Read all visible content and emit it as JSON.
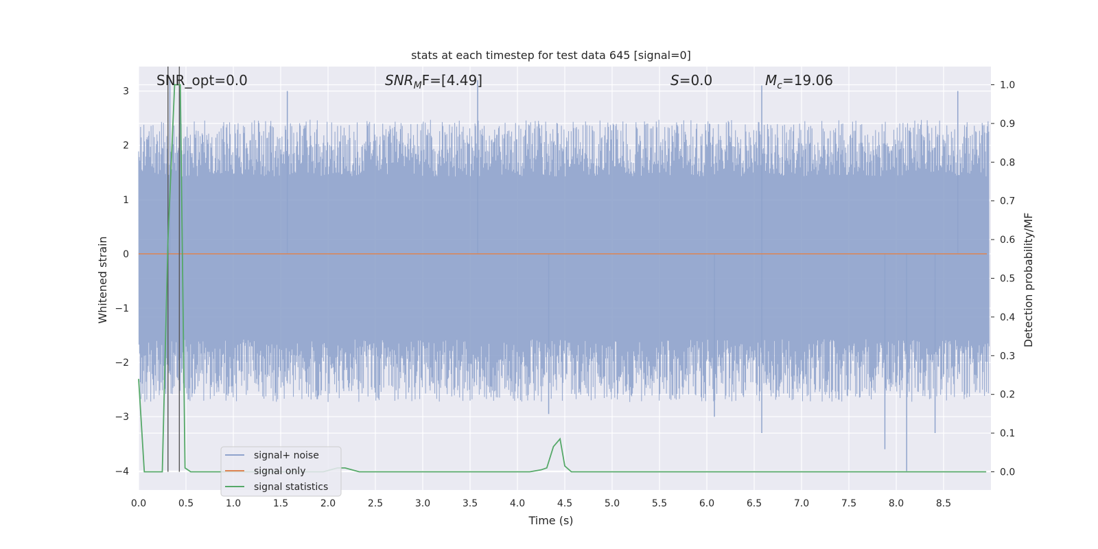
{
  "chart_data": {
    "type": "line",
    "title": "stats at each timestep for test data 645 [signal=0]",
    "xlabel": "Time (s)",
    "ylabel": "Whitened strain",
    "y2label": "Detection probability/MF",
    "xlim": [
      0.0,
      9.0
    ],
    "ylim": [
      -4.35,
      3.45
    ],
    "y2lim": [
      -0.047,
      1.047
    ],
    "x_ticks": [
      "0.0",
      "0.5",
      "1.0",
      "1.5",
      "2.0",
      "2.5",
      "3.0",
      "3.5",
      "4.0",
      "4.5",
      "5.0",
      "5.5",
      "6.0",
      "6.5",
      "7.0",
      "7.5",
      "8.0",
      "8.5"
    ],
    "y_ticks": [
      "−4",
      "−3",
      "−2",
      "−1",
      "0",
      "1",
      "2",
      "3"
    ],
    "y2_ticks": [
      "0.0",
      "0.1",
      "0.2",
      "0.3",
      "0.4",
      "0.5",
      "0.6",
      "0.7",
      "0.8",
      "0.9",
      "1.0"
    ],
    "grid": true,
    "legend_position": "lower-left",
    "annotations": {
      "snr_opt": "SNR_opt=0.0",
      "snr_mf_main": "SNR",
      "snr_mf_sub": "M",
      "snr_mf_rest": "F=[4.49]",
      "s_main": "S",
      "s_rest": "=0.0",
      "mc_main": "M",
      "mc_sub": "c",
      "mc_rest": "=19.06"
    },
    "series": [
      {
        "name": "signal+ noise",
        "color": "#8fa3cc",
        "description_kind": "noise",
        "upper_envelope_approx": [
          1.9,
          3.15
        ],
        "lower_envelope_approx": [
          -2.1,
          -4.0
        ],
        "spikes": [
          {
            "x": 0.33,
            "y": 3.2
          },
          {
            "x": 0.44,
            "y": 3.1
          },
          {
            "x": 3.58,
            "y": 3.2
          },
          {
            "x": 6.58,
            "y": 3.1
          },
          {
            "x": 1.57,
            "y": 3.0
          },
          {
            "x": 8.65,
            "y": 3.0
          },
          {
            "x": 4.33,
            "y": -2.95
          },
          {
            "x": 6.08,
            "y": -3.0
          },
          {
            "x": 6.58,
            "y": -3.3
          },
          {
            "x": 7.88,
            "y": -3.6
          },
          {
            "x": 8.11,
            "y": -4.0
          },
          {
            "x": 8.41,
            "y": -3.3
          }
        ]
      },
      {
        "name": "signal only",
        "color": "#dd8452",
        "values": [
          0,
          0
        ]
      },
      {
        "name": "signal statistics",
        "color": "#55a868",
        "axis": "right",
        "x": [
          0.0,
          0.06,
          0.13,
          0.25,
          0.31,
          0.38,
          0.42,
          0.44,
          0.49,
          0.55,
          1.0,
          1.8,
          1.95,
          2.1,
          2.18,
          2.33,
          2.5,
          3.0,
          3.5,
          4.0,
          4.13,
          4.25,
          4.31,
          4.38,
          4.45,
          4.5,
          4.57,
          4.65,
          5.0,
          6.0,
          7.0,
          8.0,
          8.5,
          8.95
        ],
        "values": [
          0.24,
          0.0,
          0.0,
          0.0,
          0.6,
          1.0,
          1.0,
          1.0,
          0.01,
          0.0,
          0.0,
          0.0,
          0.0,
          0.01,
          0.01,
          0.0,
          0.0,
          0.0,
          0.0,
          0.0,
          0.0,
          0.005,
          0.01,
          0.065,
          0.085,
          0.015,
          0.0,
          0.0,
          0.0,
          0.0,
          0.0,
          0.0,
          0.0,
          0.0
        ]
      }
    ],
    "vertical_markers": [
      0.31,
      0.43
    ]
  }
}
